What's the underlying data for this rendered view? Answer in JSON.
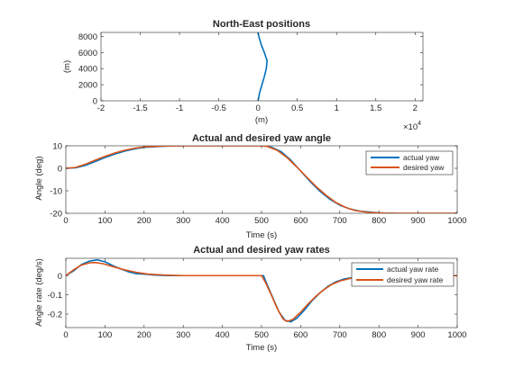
{
  "chart_data": [
    {
      "type": "line",
      "title": "North-East positions",
      "xlabel": "(m)",
      "ylabel": "(m)",
      "xlim": [
        -20000,
        21000
      ],
      "ylim": [
        0,
        8500
      ],
      "x_ticks": [
        -2,
        -1.5,
        -1,
        -0.5,
        0,
        0.5,
        1,
        1.5,
        2
      ],
      "x_tick_labels": [
        "-2",
        "-1.5",
        "-1",
        "-0.5",
        "0",
        "0.5",
        "1",
        "1.5",
        "2"
      ],
      "x_multiplier_base": "×10",
      "x_multiplier_exp": "4",
      "y_ticks": [
        0,
        2000,
        4000,
        6000,
        8000
      ],
      "y_tick_labels": [
        "0",
        "2000",
        "4000",
        "6000",
        "8000"
      ],
      "grid": false,
      "series": [
        {
          "color": "#0072BD",
          "points": [
            [
              0,
              0
            ],
            [
              200,
              1000
            ],
            [
              500,
              2000
            ],
            [
              800,
              3000
            ],
            [
              1050,
              4000
            ],
            [
              1150,
              5000
            ],
            [
              800,
              6000
            ],
            [
              400,
              7000
            ],
            [
              100,
              8000
            ],
            [
              0,
              8500
            ]
          ]
        }
      ]
    },
    {
      "type": "line",
      "title": "Actual and desired yaw angle",
      "xlabel": "Time (s)",
      "ylabel": "Angle (deg)",
      "xlim": [
        0,
        1000
      ],
      "ylim": [
        -20,
        10
      ],
      "x_ticks": [
        0,
        100,
        200,
        300,
        400,
        500,
        600,
        700,
        800,
        900,
        1000
      ],
      "x_tick_labels": [
        "0",
        "100",
        "200",
        "300",
        "400",
        "500",
        "600",
        "700",
        "800",
        "900",
        "1000"
      ],
      "y_ticks": [
        -20,
        -10,
        0,
        10
      ],
      "y_tick_labels": [
        "-20",
        "-10",
        "0",
        "10"
      ],
      "grid": false,
      "legend": "top-right",
      "series": [
        {
          "name": "actual yaw",
          "color": "#0072BD",
          "points": [
            [
              0,
              0
            ],
            [
              25,
              0.2
            ],
            [
              50,
              1.3
            ],
            [
              75,
              3.0
            ],
            [
              100,
              4.8
            ],
            [
              125,
              6.3
            ],
            [
              150,
              7.6
            ],
            [
              175,
              8.6
            ],
            [
              200,
              9.3
            ],
            [
              250,
              9.8
            ],
            [
              300,
              10
            ],
            [
              500,
              10
            ],
            [
              510,
              9.9
            ],
            [
              525,
              9.4
            ],
            [
              550,
              7.4
            ],
            [
              575,
              3.6
            ],
            [
              600,
              -1.2
            ],
            [
              625,
              -6.0
            ],
            [
              650,
              -10.3
            ],
            [
              675,
              -13.8
            ],
            [
              700,
              -16.4
            ],
            [
              725,
              -18.0
            ],
            [
              750,
              -19.0
            ],
            [
              800,
              -19.8
            ],
            [
              850,
              -20
            ],
            [
              1000,
              -20
            ]
          ]
        },
        {
          "name": "desired yaw",
          "color": "#D95319",
          "points": [
            [
              0,
              0
            ],
            [
              25,
              0.4
            ],
            [
              50,
              1.8
            ],
            [
              75,
              3.6
            ],
            [
              100,
              5.3
            ],
            [
              125,
              6.8
            ],
            [
              150,
              8.0
            ],
            [
              175,
              8.9
            ],
            [
              200,
              9.5
            ],
            [
              250,
              9.9
            ],
            [
              300,
              10
            ],
            [
              500,
              10
            ],
            [
              515,
              9.7
            ],
            [
              540,
              8.0
            ],
            [
              565,
              4.8
            ],
            [
              590,
              0.6
            ],
            [
              615,
              -3.8
            ],
            [
              640,
              -8.2
            ],
            [
              665,
              -12.0
            ],
            [
              690,
              -15.2
            ],
            [
              715,
              -17.4
            ],
            [
              740,
              -18.8
            ],
            [
              775,
              -19.6
            ],
            [
              825,
              -20
            ],
            [
              1000,
              -20
            ]
          ]
        }
      ]
    },
    {
      "type": "line",
      "title": "Actual and desired yaw rates",
      "xlabel": "Time (s)",
      "ylabel": "Angle rate (deg/s)",
      "xlim": [
        0,
        1000
      ],
      "ylim": [
        -0.27,
        0.09
      ],
      "x_ticks": [
        0,
        100,
        200,
        300,
        400,
        500,
        600,
        700,
        800,
        900,
        1000
      ],
      "x_tick_labels": [
        "0",
        "100",
        "200",
        "300",
        "400",
        "500",
        "600",
        "700",
        "800",
        "900",
        "1000"
      ],
      "y_ticks": [
        -0.2,
        -0.1,
        0
      ],
      "y_tick_labels": [
        "-0.2",
        "-0.1",
        "0"
      ],
      "grid": false,
      "legend": "top-right",
      "series": [
        {
          "name": "actual yaw rate",
          "color": "#0072BD",
          "points": [
            [
              0,
              0
            ],
            [
              20,
              0.025
            ],
            [
              40,
              0.058
            ],
            [
              60,
              0.075
            ],
            [
              80,
              0.082
            ],
            [
              100,
              0.072
            ],
            [
              120,
              0.052
            ],
            [
              140,
              0.035
            ],
            [
              160,
              0.02
            ],
            [
              180,
              0.01
            ],
            [
              200,
              0.008
            ],
            [
              220,
              0.004
            ],
            [
              250,
              0.001
            ],
            [
              300,
              0
            ],
            [
              505,
              0
            ],
            [
              515,
              -0.05
            ],
            [
              530,
              -0.12
            ],
            [
              545,
              -0.19
            ],
            [
              560,
              -0.232
            ],
            [
              575,
              -0.24
            ],
            [
              590,
              -0.222
            ],
            [
              610,
              -0.178
            ],
            [
              630,
              -0.128
            ],
            [
              650,
              -0.088
            ],
            [
              670,
              -0.055
            ],
            [
              690,
              -0.032
            ],
            [
              710,
              -0.018
            ],
            [
              740,
              -0.008
            ],
            [
              780,
              -0.002
            ],
            [
              820,
              0
            ],
            [
              1000,
              0
            ]
          ]
        },
        {
          "name": "desired yaw rate",
          "color": "#D95319",
          "points": [
            [
              0,
              0
            ],
            [
              20,
              0.03
            ],
            [
              40,
              0.055
            ],
            [
              60,
              0.066
            ],
            [
              75,
              0.068
            ],
            [
              95,
              0.062
            ],
            [
              120,
              0.047
            ],
            [
              150,
              0.03
            ],
            [
              180,
              0.017
            ],
            [
              210,
              0.008
            ],
            [
              250,
              0.003
            ],
            [
              300,
              0
            ],
            [
              500,
              0
            ],
            [
              510,
              -0.035
            ],
            [
              525,
              -0.1
            ],
            [
              540,
              -0.17
            ],
            [
              555,
              -0.225
            ],
            [
              565,
              -0.238
            ],
            [
              580,
              -0.228
            ],
            [
              600,
              -0.19
            ],
            [
              620,
              -0.145
            ],
            [
              640,
              -0.105
            ],
            [
              660,
              -0.072
            ],
            [
              680,
              -0.045
            ],
            [
              700,
              -0.028
            ],
            [
              730,
              -0.013
            ],
            [
              770,
              -0.004
            ],
            [
              820,
              0
            ],
            [
              1000,
              0
            ]
          ]
        }
      ]
    }
  ]
}
